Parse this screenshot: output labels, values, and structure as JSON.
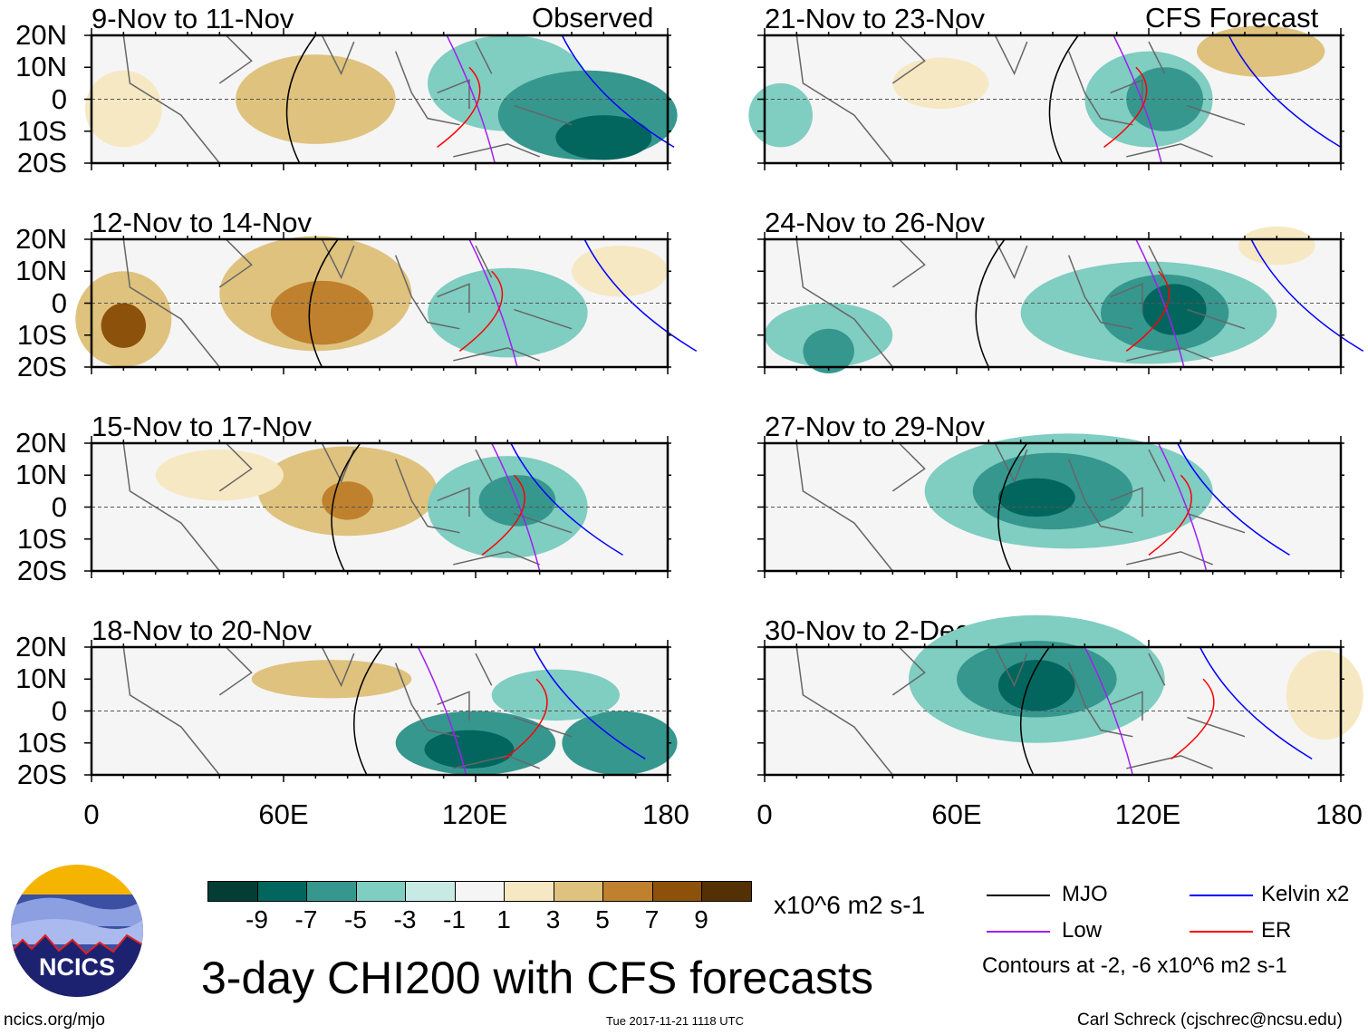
{
  "left_header": "Observed",
  "right_header": "CFS Forecast",
  "panels": [
    {
      "title": "9-Nov to 11-Nov",
      "column": "left"
    },
    {
      "title": "12-Nov to 14-Nov",
      "column": "left"
    },
    {
      "title": "15-Nov to 17-Nov",
      "column": "left"
    },
    {
      "title": "18-Nov to 20-Nov",
      "column": "left"
    },
    {
      "title": "21-Nov to 23-Nov",
      "column": "right"
    },
    {
      "title": "24-Nov to 26-Nov",
      "column": "right"
    },
    {
      "title": "27-Nov to 29-Nov",
      "column": "right"
    },
    {
      "title": "30-Nov to 2-Dec",
      "column": "right"
    }
  ],
  "lat_labels": [
    "20N",
    "10N",
    "0",
    "10S",
    "20S"
  ],
  "lon_labels": [
    "0",
    "60E",
    "120E",
    "180"
  ],
  "colorbar": {
    "colors": [
      "#033d34",
      "#02665e",
      "#36978f",
      "#80cdc1",
      "#c7eae5",
      "#f5f5f5",
      "#f6e8c3",
      "#dfc27d",
      "#bf812d",
      "#8c510a",
      "#543005"
    ],
    "labels": [
      "-9",
      "-7",
      "-5",
      "-3",
      "-1",
      "1",
      "3",
      "5",
      "7",
      "9"
    ],
    "units": "x10^6 m2 s-1"
  },
  "title": "3-day CHI200 with CFS forecasts",
  "legend": [
    {
      "label": "MJO",
      "color": "#000000"
    },
    {
      "label": "Kelvin x2",
      "color": "#0000ff"
    },
    {
      "label": "Low",
      "color": "#a020f0"
    },
    {
      "label": "ER",
      "color": "#ff0000"
    }
  ],
  "contour_note": "Contours at -2, -6 x10^6 m2 s-1",
  "logo_text": "NCICS",
  "footer": {
    "url": "ncics.org/mjo",
    "timestamp": "Tue 2017-11-21 1118 UTC",
    "credit": "Carl Schreck (cjschrec@ncsu.edu)"
  }
}
